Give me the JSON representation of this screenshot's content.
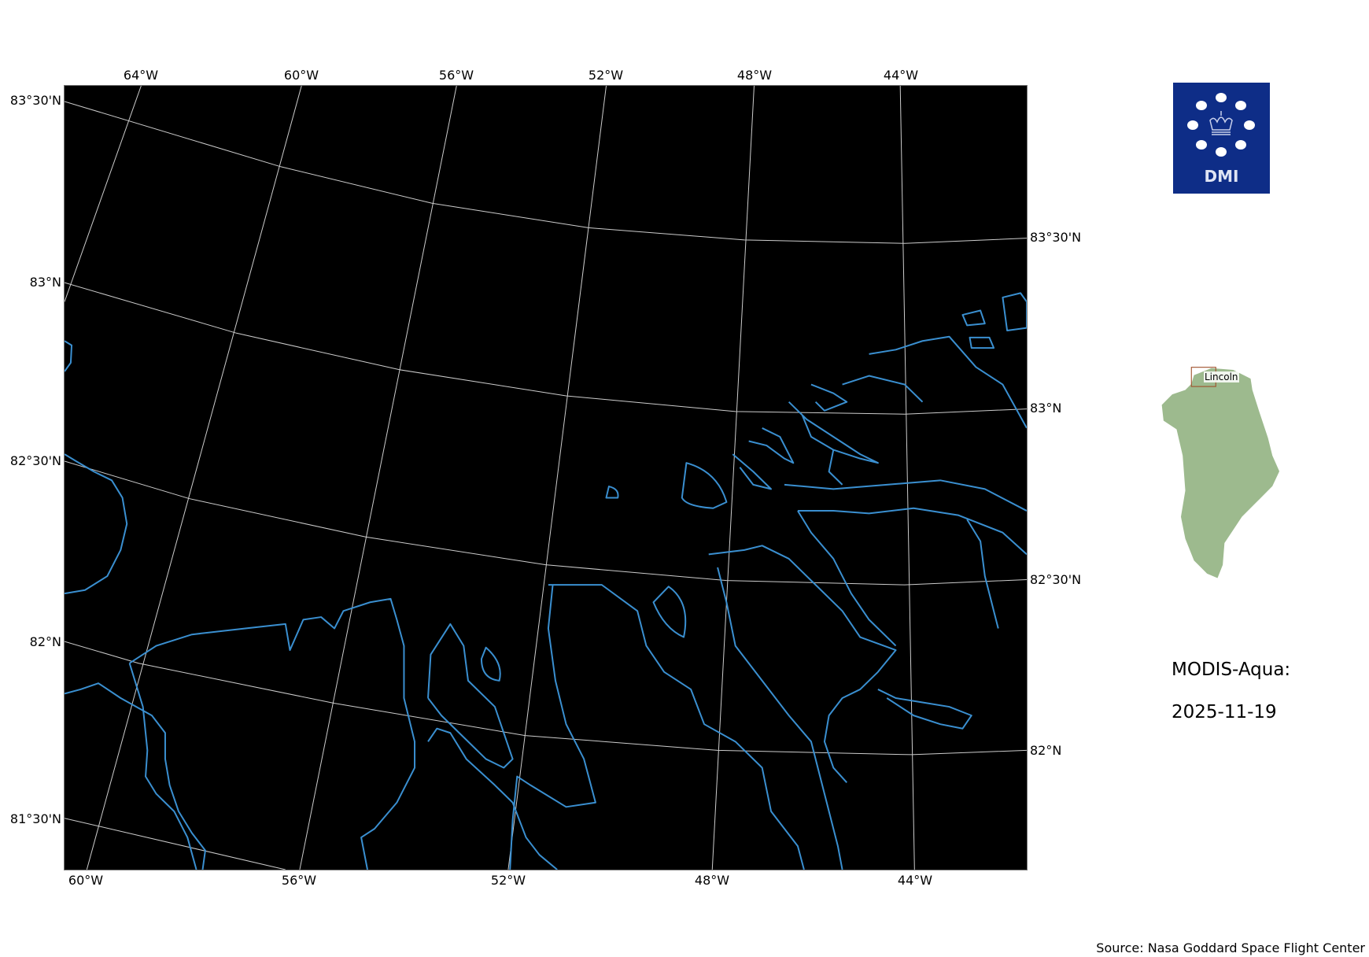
{
  "map": {
    "background_color": "#000000",
    "coastline_color": "#3a8fd0",
    "gridline_color": "#cccccc",
    "top_lon_labels": [
      "64°W",
      "60°W",
      "56°W",
      "52°W",
      "48°W",
      "44°W"
    ],
    "bottom_lon_labels": [
      "60°W",
      "56°W",
      "52°W",
      "48°W",
      "44°W"
    ],
    "left_lat_labels": [
      "83°30'N",
      "83°N",
      "82°30'N",
      "82°N",
      "81°30'N"
    ],
    "right_lat_labels": [
      "83°30'N",
      "83°N",
      "82°30'N",
      "82°N"
    ]
  },
  "logo": {
    "text": "DMI",
    "color": "#0e2d87"
  },
  "inset": {
    "region_label": "Lincoln",
    "land_color": "#9dba8e",
    "box_color": "#a0522d"
  },
  "info": {
    "satellite": "MODIS-Aqua:",
    "date": "2025-11-19"
  },
  "source": "Source: Nasa Goddard Space Flight Center"
}
